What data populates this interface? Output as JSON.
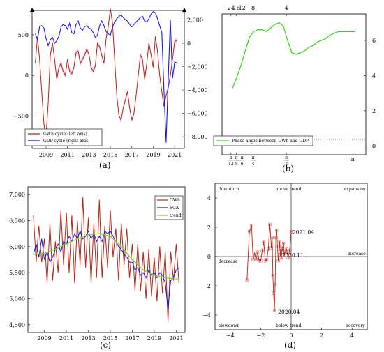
{
  "colors": {
    "gwh": "#b0281a",
    "gdp": "#1a1ad8",
    "sca": "#1a1ad8",
    "trend": "#7ad22c",
    "phase": "#46cf2c",
    "band": "#f3c9f1",
    "rect": "#d81b1b"
  },
  "chart_data": [
    {
      "id": "a",
      "type": "line",
      "panel_label": "(a)",
      "x_ticks": [
        "2009",
        "2011",
        "2013",
        "2015",
        "2017",
        "2019",
        "2021"
      ],
      "x_tick_values": [
        2009,
        2011,
        2013,
        2015,
        2017,
        2019,
        2021
      ],
      "xlim": [
        2007.7,
        2021.9
      ],
      "y_left_ticks": [
        "500",
        "0",
        "−500"
      ],
      "y_left_tick_values": [
        500,
        0,
        -500
      ],
      "ylim_left": [
        -900,
        800
      ],
      "y_right_ticks": [
        "2,000",
        "0",
        "−2,000",
        "−4,000",
        "−6,000",
        "−8,000"
      ],
      "y_right_tick_values": [
        2000,
        0,
        -2000,
        -4000,
        -6000,
        -8000
      ],
      "ylim_right": [
        -9000,
        2800
      ],
      "legend": [
        "GWh cycle (left axis)",
        "GDP cycle (right axis)"
      ],
      "series": [
        {
          "name": "GWh cycle (left axis)",
          "axis": "left",
          "x": [
            2008.0,
            2008.2,
            2008.4,
            2008.6,
            2008.8,
            2009.0,
            2009.2,
            2009.4,
            2009.6,
            2009.8,
            2010.0,
            2010.2,
            2010.4,
            2010.6,
            2010.8,
            2011.0,
            2011.2,
            2011.4,
            2011.6,
            2011.8,
            2012.0,
            2012.2,
            2012.4,
            2012.6,
            2012.8,
            2013.0,
            2013.2,
            2013.4,
            2013.6,
            2013.8,
            2014.0,
            2014.2,
            2014.4,
            2014.6,
            2014.8,
            2015.0,
            2015.2,
            2015.4,
            2015.6,
            2015.8,
            2016.0,
            2016.2,
            2016.4,
            2016.6,
            2016.8,
            2017.0,
            2017.2,
            2017.4,
            2017.6,
            2017.8,
            2018.0,
            2018.2,
            2018.4,
            2018.6,
            2018.8,
            2019.0,
            2019.2,
            2019.4,
            2019.6,
            2019.8,
            2020.0,
            2020.2,
            2020.4,
            2020.6,
            2020.8,
            2021.0,
            2021.2
          ],
          "values": [
            150,
            480,
            200,
            -200,
            -600,
            -750,
            -350,
            250,
            400,
            200,
            -50,
            100,
            150,
            50,
            0,
            200,
            50,
            20,
            100,
            280,
            300,
            150,
            200,
            250,
            320,
            260,
            100,
            50,
            120,
            400,
            350,
            250,
            150,
            450,
            600,
            820,
            650,
            200,
            -250,
            -500,
            -550,
            -400,
            -300,
            -200,
            -400,
            -550,
            -470,
            -250,
            0,
            250,
            200,
            -50,
            150,
            400,
            250,
            100,
            480,
            300,
            0,
            -200,
            -380,
            -250,
            -150,
            0,
            200,
            420,
            430
          ]
        },
        {
          "name": "GDP cycle (right axis)",
          "axis": "right",
          "x": [
            2008.0,
            2008.2,
            2008.4,
            2008.6,
            2008.8,
            2009.0,
            2009.2,
            2009.4,
            2009.6,
            2009.8,
            2010.0,
            2010.2,
            2010.4,
            2010.6,
            2010.8,
            2011.0,
            2011.2,
            2011.4,
            2011.6,
            2011.8,
            2012.0,
            2012.2,
            2012.4,
            2012.6,
            2012.8,
            2013.0,
            2013.2,
            2013.4,
            2013.6,
            2013.8,
            2014.0,
            2014.2,
            2014.4,
            2014.6,
            2014.8,
            2015.0,
            2015.2,
            2015.4,
            2015.6,
            2015.8,
            2016.0,
            2016.2,
            2016.4,
            2016.6,
            2016.8,
            2017.0,
            2017.2,
            2017.4,
            2017.6,
            2017.8,
            2018.0,
            2018.2,
            2018.4,
            2018.6,
            2018.8,
            2019.0,
            2019.2,
            2019.4,
            2019.6,
            2019.8,
            2020.0,
            2020.2,
            2020.4,
            2020.6,
            2020.8,
            2021.0,
            2021.2
          ],
          "values": [
            800,
            300,
            1400,
            1500,
            1300,
            400,
            -200,
            300,
            500,
            0,
            200,
            600,
            1400,
            1600,
            1500,
            1200,
            1700,
            900,
            800,
            1600,
            1900,
            1300,
            1100,
            1400,
            1500,
            1300,
            1200,
            900,
            500,
            700,
            1500,
            1900,
            1500,
            1000,
            800,
            700,
            1400,
            1800,
            2100,
            2300,
            2400,
            2200,
            2000,
            1900,
            1600,
            1400,
            1600,
            1800,
            2000,
            2200,
            2300,
            1900,
            1800,
            2100,
            2500,
            2700,
            2600,
            2100,
            1500,
            900,
            -4000,
            -8500,
            -3000,
            2000,
            -3000,
            -1600,
            -1700
          ]
        }
      ]
    },
    {
      "id": "b",
      "type": "line",
      "panel_label": "(b)",
      "x_top_ticks": [
        "24",
        "16",
        "12",
        "8",
        "4"
      ],
      "x_top_tick_values": [
        0.2618,
        0.3927,
        0.5236,
        0.7854,
        1.5708
      ],
      "x_bottom_ticks": [
        {
          "num": "π",
          "den": "12"
        },
        {
          "num": "π",
          "den": "8"
        },
        {
          "num": "π",
          "den": "6"
        },
        {
          "num": "π",
          "den": "4"
        },
        {
          "num": "π",
          "den": "2"
        },
        {
          "num": "π",
          "den": ""
        }
      ],
      "x_bottom_tick_values": [
        0.2618,
        0.3927,
        0.5236,
        0.7854,
        1.5708,
        3.1416
      ],
      "xlim": [
        0.05,
        3.45
      ],
      "y_ticks": [
        "6",
        "4",
        "2",
        "0"
      ],
      "y_tick_values": [
        6,
        4,
        2,
        0
      ],
      "ylim": [
        -0.5,
        7.5
      ],
      "legend": [
        "Phase angle between GWh and GDP"
      ],
      "series": [
        {
          "name": "Phase angle between GWh and GDP",
          "x": [
            0.3,
            0.4,
            0.5,
            0.6,
            0.7,
            0.8,
            0.9,
            1.0,
            1.1,
            1.2,
            1.3,
            1.4,
            1.5,
            1.6,
            1.7,
            1.8,
            1.9,
            2.0,
            2.1,
            2.2,
            2.3,
            2.4,
            2.5,
            2.6,
            2.7,
            2.8,
            2.9,
            3.0,
            3.1,
            3.2
          ],
          "values": [
            3.3,
            3.9,
            4.6,
            5.4,
            6.2,
            6.5,
            6.6,
            6.6,
            6.5,
            6.7,
            6.9,
            7.0,
            6.8,
            6.0,
            5.3,
            5.2,
            5.3,
            5.4,
            5.6,
            5.7,
            5.9,
            6.0,
            6.1,
            6.3,
            6.4,
            6.5,
            6.5,
            6.5,
            6.5,
            6.5
          ]
        }
      ]
    },
    {
      "id": "c",
      "type": "line",
      "panel_label": "(c)",
      "x_ticks": [
        "2009",
        "2011",
        "2013",
        "2015",
        "2017",
        "2019",
        "2021"
      ],
      "x_tick_values": [
        2009,
        2011,
        2013,
        2015,
        2017,
        2019,
        2021
      ],
      "xlim": [
        2007.5,
        2021.8
      ],
      "y_ticks": [
        "7,000",
        "6,500",
        "6,000",
        "5,500",
        "5,000",
        "4,500"
      ],
      "y_tick_values": [
        7000,
        6500,
        6000,
        5500,
        5000,
        4500
      ],
      "ylim": [
        4350,
        7150
      ],
      "legend": [
        "GWh",
        "SCA",
        "trend"
      ],
      "series": [
        {
          "name": "GWh",
          "x": [
            2008.0,
            2008.25,
            2008.5,
            2008.75,
            2009.0,
            2009.25,
            2009.5,
            2009.75,
            2010.0,
            2010.25,
            2010.5,
            2010.75,
            2011.0,
            2011.25,
            2011.5,
            2011.75,
            2012.0,
            2012.25,
            2012.5,
            2012.75,
            2013.0,
            2013.25,
            2013.5,
            2013.75,
            2014.0,
            2014.25,
            2014.5,
            2014.75,
            2015.0,
            2015.25,
            2015.5,
            2015.75,
            2016.0,
            2016.25,
            2016.5,
            2016.75,
            2017.0,
            2017.25,
            2017.5,
            2017.75,
            2018.0,
            2018.25,
            2018.5,
            2018.75,
            2019.0,
            2019.25,
            2019.5,
            2019.75,
            2020.0,
            2020.25,
            2020.5,
            2020.75,
            2021.0,
            2021.25
          ],
          "values": [
            6600,
            5700,
            6400,
            5700,
            6150,
            5300,
            6450,
            5350,
            6100,
            5500,
            6700,
            5650,
            6650,
            5500,
            6600,
            5300,
            6500,
            5650,
            6950,
            5600,
            6550,
            5300,
            6450,
            5400,
            6900,
            5400,
            6400,
            5600,
            6700,
            5800,
            6350,
            5350,
            6450,
            5650,
            6350,
            5400,
            6050,
            5150,
            6050,
            5150,
            5900,
            5000,
            5950,
            5050,
            5800,
            4950,
            6000,
            5100,
            5900,
            4550,
            5900,
            5350,
            6050,
            5300
          ]
        },
        {
          "name": "SCA",
          "x": [
            2008.0,
            2008.25,
            2008.5,
            2008.75,
            2009.0,
            2009.25,
            2009.5,
            2009.75,
            2010.0,
            2010.25,
            2010.5,
            2010.75,
            2011.0,
            2011.25,
            2011.5,
            2011.75,
            2012.0,
            2012.25,
            2012.5,
            2012.75,
            2013.0,
            2013.25,
            2013.5,
            2013.75,
            2014.0,
            2014.25,
            2014.5,
            2014.75,
            2015.0,
            2015.25,
            2015.5,
            2015.75,
            2016.0,
            2016.25,
            2016.5,
            2016.75,
            2017.0,
            2017.25,
            2017.5,
            2017.75,
            2018.0,
            2018.25,
            2018.5,
            2018.75,
            2019.0,
            2019.25,
            2019.5,
            2019.75,
            2020.0,
            2020.25,
            2020.5,
            2020.75,
            2021.0,
            2021.25
          ],
          "values": [
            5850,
            6050,
            5800,
            6150,
            5750,
            5900,
            5700,
            5800,
            5950,
            6050,
            5900,
            6100,
            6050,
            6200,
            6100,
            6250,
            6150,
            6300,
            6150,
            6200,
            6300,
            6150,
            6250,
            6100,
            6200,
            6100,
            6300,
            6250,
            6300,
            6200,
            6100,
            6000,
            5950,
            5850,
            5800,
            5700,
            5700,
            5550,
            5600,
            5450,
            5500,
            5400,
            5550,
            5450,
            5500,
            5400,
            5500,
            5450,
            5300,
            4800,
            5350,
            5400,
            5550,
            5600
          ]
        },
        {
          "name": "trend",
          "x": [
            2008.0,
            2009.0,
            2010.0,
            2011.0,
            2012.0,
            2013.0,
            2014.0,
            2015.0,
            2016.0,
            2017.0,
            2018.0,
            2019.0,
            2020.0,
            2021.0,
            2021.25
          ],
          "values": [
            5850,
            5870,
            5950,
            6050,
            6150,
            6230,
            6250,
            6200,
            6000,
            5750,
            5550,
            5450,
            5400,
            5380,
            5380
          ]
        }
      ]
    },
    {
      "id": "d",
      "type": "scatter",
      "panel_label": "(d)",
      "x_ticks": [
        "−4",
        "−2",
        "0",
        "2",
        "4"
      ],
      "x_tick_values": [
        -4,
        -2,
        0,
        2,
        4
      ],
      "xlim": [
        -5,
        5
      ],
      "y_ticks": [
        "4",
        "2",
        "0",
        "−2",
        "−4"
      ],
      "y_tick_values": [
        4,
        2,
        0,
        -2,
        -4
      ],
      "ylim": [
        -5,
        5
      ],
      "quadrants": {
        "top_left": "downturn",
        "top_center": "above trend",
        "top_right": "expansion",
        "mid_left": "decrease",
        "mid_right": "increase",
        "bottom_left": "slowdown",
        "bottom_center": "below trend",
        "bottom_right": "recovery"
      },
      "annotations": [
        {
          "text": "2021.04",
          "x": 0.0,
          "y": 1.7
        },
        {
          "text": "2020.11",
          "x": -0.7,
          "y": 0.12
        },
        {
          "text": "2020.04",
          "x": -0.95,
          "y": -3.75
        }
      ],
      "series": [
        {
          "name": "trajectory",
          "x": [
            -2.9,
            -2.75,
            -2.6,
            -2.5,
            -2.4,
            -2.3,
            -2.2,
            -2.1,
            -2.0,
            -1.9,
            -1.8,
            -1.7,
            -1.6,
            -1.5,
            -1.4,
            -1.3,
            -1.25,
            -1.2,
            -1.15,
            -1.1,
            -1.05,
            -1.0,
            -0.95,
            -0.9,
            -0.85,
            -0.8,
            -0.75,
            -0.7,
            -0.65,
            -0.6,
            -0.55,
            -0.5,
            -0.45,
            -0.4,
            -0.3,
            -0.2,
            -0.1,
            0.0
          ],
          "values": [
            -1.6,
            1.7,
            2.1,
            -0.2,
            0.2,
            -0.2,
            0.3,
            -0.3,
            -0.3,
            0.4,
            1.0,
            -0.3,
            -0.2,
            0.5,
            2.2,
            0.6,
            1.3,
            -1.3,
            -2.5,
            -3.7,
            -1.9,
            1.3,
            1.8,
            0.7,
            -0.3,
            0.3,
            1.0,
            0.1,
            -0.1,
            0.4,
            0.6,
            0.9,
            0.1,
            0.3,
            0.5,
            -0.1,
            0.4,
            1.7
          ]
        }
      ]
    }
  ]
}
